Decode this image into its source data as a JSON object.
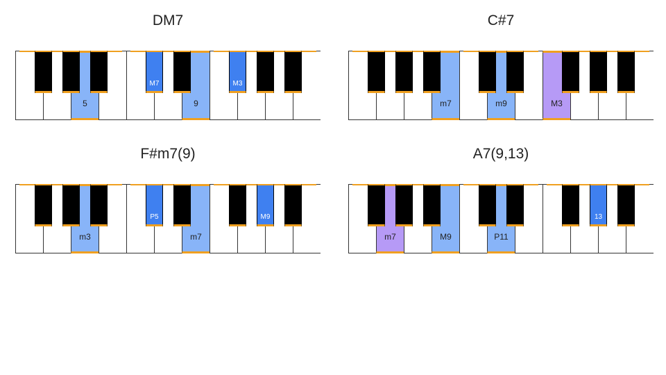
{
  "colors": {
    "white_key": "#ffffff",
    "black_key": "#000000",
    "key_border": "#333333",
    "orange_accent": "#f0a020",
    "light_blue": "#88b4f8",
    "medium_blue": "#3f80f0",
    "purple": "#b69af6",
    "label_on_light": "#222222",
    "label_on_dark": "#ffffff"
  },
  "keyboard": {
    "white_key_count": 11,
    "first_white_note": "C",
    "black_key_indices_after_white": [
      0,
      1,
      2,
      4,
      5,
      7,
      8,
      9
    ]
  },
  "chords": [
    {
      "name": "DM7",
      "highlights": [
        {
          "key_type": "white",
          "index": 2,
          "color": "light_blue",
          "label": "5"
        },
        {
          "key_type": "black",
          "index": 3,
          "color": "medium_blue",
          "label": "M7"
        },
        {
          "key_type": "white",
          "index": 6,
          "color": "light_blue",
          "label": "9"
        },
        {
          "key_type": "black",
          "index": 5,
          "color": "medium_blue",
          "label": "M3"
        }
      ]
    },
    {
      "name": "C#7",
      "highlights": [
        {
          "key_type": "white",
          "index": 3,
          "color": "light_blue",
          "label": "m7"
        },
        {
          "key_type": "white",
          "index": 5,
          "color": "light_blue",
          "label": "m9"
        },
        {
          "key_type": "white",
          "index": 7,
          "color": "purple",
          "label": "M3"
        }
      ]
    },
    {
      "name": "F#m7(9)",
      "highlights": [
        {
          "key_type": "white",
          "index": 2,
          "color": "light_blue",
          "label": "m3"
        },
        {
          "key_type": "black",
          "index": 3,
          "color": "medium_blue",
          "label": "P5"
        },
        {
          "key_type": "white",
          "index": 6,
          "color": "light_blue",
          "label": "m7"
        },
        {
          "key_type": "black",
          "index": 6,
          "color": "medium_blue",
          "label": "M9"
        }
      ]
    },
    {
      "name": "A7(9,13)",
      "highlights": [
        {
          "key_type": "white",
          "index": 1,
          "color": "purple",
          "label": "m7"
        },
        {
          "key_type": "white",
          "index": 3,
          "color": "light_blue",
          "label": "M9"
        },
        {
          "key_type": "white",
          "index": 5,
          "color": "light_blue",
          "label": "P11"
        },
        {
          "key_type": "black",
          "index": 6,
          "color": "medium_blue",
          "label": "13"
        }
      ]
    }
  ]
}
